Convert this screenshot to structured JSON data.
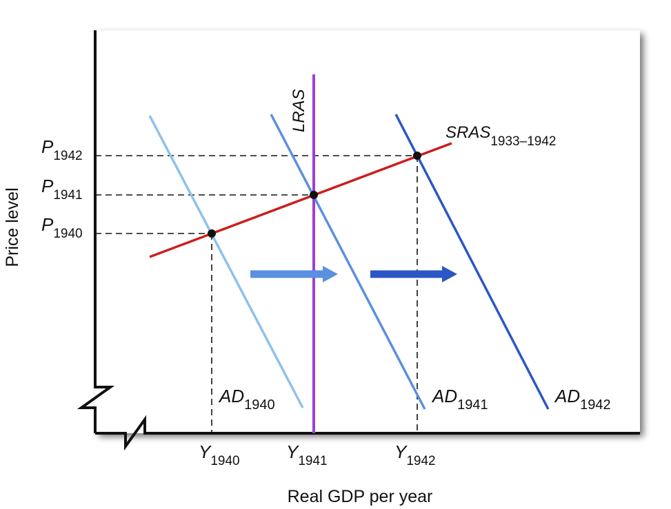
{
  "axes": {
    "x_label": "Real GDP per year",
    "y_label": "Price level"
  },
  "curves": {
    "lras": {
      "name": "LRAS",
      "color": "#9b3fd6"
    },
    "sras": {
      "name": "SRAS",
      "subscript": "1933–1942",
      "color": "#cc1d1d"
    },
    "ad1940": {
      "name": "AD",
      "subscript": "1940",
      "color": "#8fc0ec"
    },
    "ad1941": {
      "name": "AD",
      "subscript": "1941",
      "color": "#5b8fe0"
    },
    "ad1942": {
      "name": "AD",
      "subscript": "1942",
      "color": "#2c56c7"
    }
  },
  "price_levels": [
    {
      "name": "P",
      "subscript": "1942"
    },
    {
      "name": "P",
      "subscript": "1941"
    },
    {
      "name": "P",
      "subscript": "1940"
    }
  ],
  "output_levels": [
    {
      "name": "Y",
      "subscript": "1940"
    },
    {
      "name": "Y",
      "subscript": "1941"
    },
    {
      "name": "Y",
      "subscript": "1942"
    }
  ],
  "arrows": [
    {
      "direction": "right",
      "color": "#5b8fe0"
    },
    {
      "direction": "right",
      "color": "#2c56c7"
    }
  ]
}
